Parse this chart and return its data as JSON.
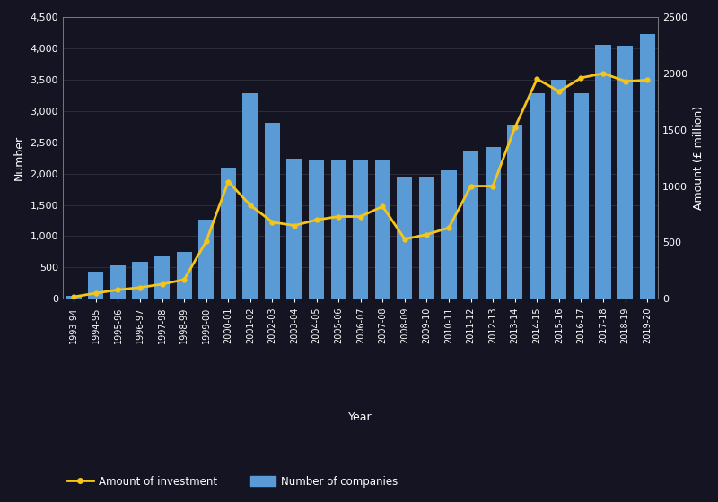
{
  "years": [
    "1993-94",
    "1994-95",
    "1995-96",
    "1996-97",
    "1997-98",
    "1998-99",
    "1999-00",
    "2000-01",
    "2001-02",
    "2002-03",
    "2003-04",
    "2004-05",
    "2005-06",
    "2006-07",
    "2007-08",
    "2008-09",
    "2009-10",
    "2010-11",
    "2011-12",
    "2012-13",
    "2013-14",
    "2014-15",
    "2015-16",
    "2016-17",
    "2017-18",
    "2018-19",
    "2019-20"
  ],
  "num_companies": [
    50,
    430,
    540,
    590,
    680,
    750,
    1270,
    2090,
    3280,
    2810,
    2240,
    2230,
    2230,
    2230,
    2220,
    1940,
    1950,
    2050,
    2350,
    2430,
    2780,
    3280,
    3500,
    3280,
    4060,
    4040,
    4230
  ],
  "amount_investment": [
    18,
    50,
    80,
    100,
    130,
    170,
    510,
    1040,
    830,
    680,
    650,
    700,
    730,
    730,
    820,
    530,
    570,
    630,
    1000,
    1000,
    1520,
    1950,
    1840,
    1960,
    2000,
    1930,
    1940
  ],
  "bar_color": "#5B9BD5",
  "line_color": "#F5C518",
  "background_color": "#141422",
  "left_ylabel": "Number",
  "right_ylabel": "Amount (£ million)",
  "xlabel": "Year",
  "left_ylim": [
    0,
    4500
  ],
  "right_ylim": [
    0,
    2500
  ],
  "left_yticks": [
    0,
    500,
    1000,
    1500,
    2000,
    2500,
    3000,
    3500,
    4000,
    4500
  ],
  "right_yticks": [
    0,
    500,
    1000,
    1500,
    2000,
    2500
  ],
  "legend_line_label": "Amount of investment",
  "legend_bar_label": "Number of companies"
}
